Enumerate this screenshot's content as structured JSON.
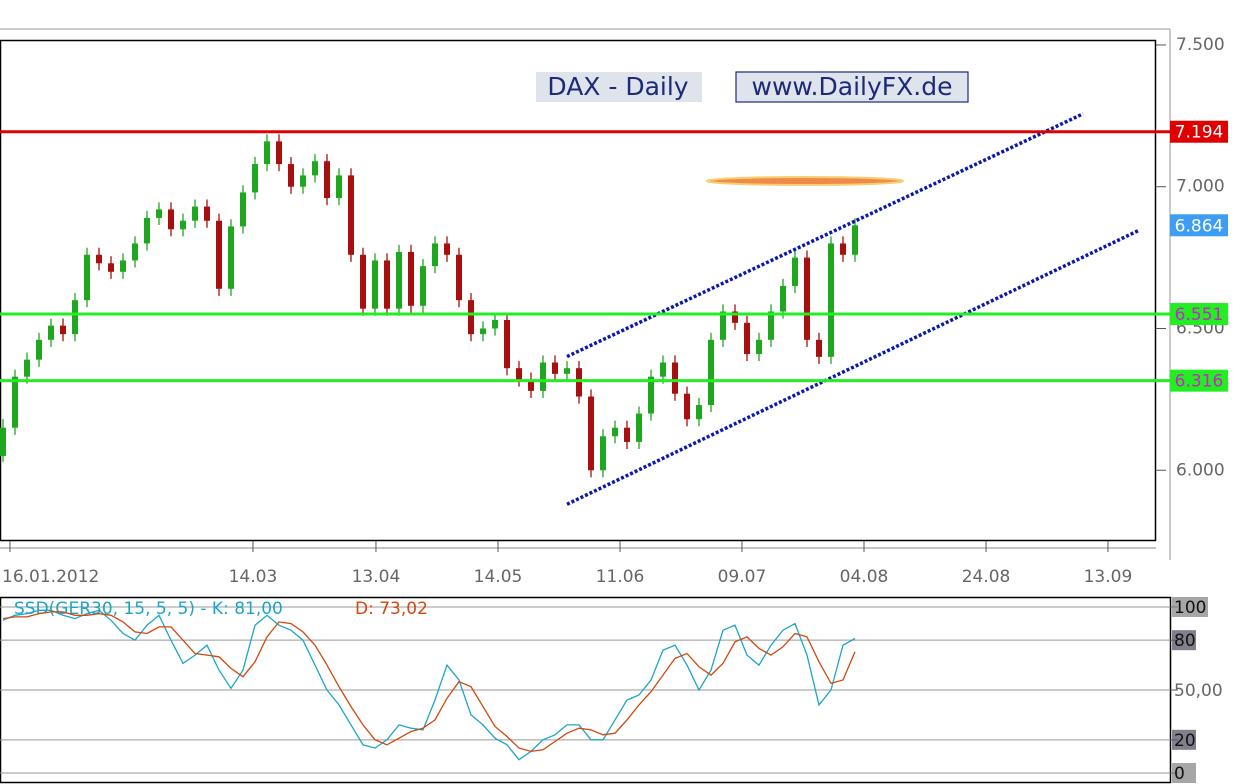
{
  "chart_data": [
    {
      "type": "candlestick",
      "title": "DAX  - Daily",
      "subtitle": "www.DailyFX.de",
      "up_color": "#1fa81f",
      "down_color": "#a80f0f",
      "ohlc": [
        [
          6050,
          6180,
          6030,
          6150
        ],
        [
          6150,
          6355,
          6125,
          6330
        ],
        [
          6330,
          6415,
          6305,
          6390
        ],
        [
          6390,
          6485,
          6365,
          6460
        ],
        [
          6460,
          6535,
          6435,
          6510
        ],
        [
          6510,
          6535,
          6455,
          6480
        ],
        [
          6480,
          6625,
          6455,
          6600
        ],
        [
          6600,
          6785,
          6575,
          6760
        ],
        [
          6760,
          6785,
          6705,
          6730
        ],
        [
          6730,
          6755,
          6675,
          6700
        ],
        [
          6700,
          6765,
          6675,
          6740
        ],
        [
          6740,
          6825,
          6715,
          6800
        ],
        [
          6800,
          6915,
          6775,
          6890
        ],
        [
          6890,
          6945,
          6865,
          6920
        ],
        [
          6920,
          6945,
          6825,
          6850
        ],
        [
          6850,
          6905,
          6825,
          6880
        ],
        [
          6880,
          6955,
          6855,
          6930
        ],
        [
          6930,
          6955,
          6855,
          6880
        ],
        [
          6880,
          6905,
          6615,
          6640
        ],
        [
          6640,
          6885,
          6615,
          6860
        ],
        [
          6860,
          7005,
          6835,
          6980
        ],
        [
          6980,
          7105,
          6955,
          7080
        ],
        [
          7080,
          7185,
          7055,
          7160
        ],
        [
          7160,
          7185,
          7055,
          7080
        ],
        [
          7080,
          7105,
          6975,
          7000
        ],
        [
          7000,
          7065,
          6975,
          7040
        ],
        [
          7040,
          7115,
          7015,
          7090
        ],
        [
          7090,
          7115,
          6935,
          6960
        ],
        [
          6960,
          7065,
          6935,
          7040
        ],
        [
          7040,
          7065,
          6735,
          6760
        ],
        [
          6760,
          6785,
          6545,
          6570
        ],
        [
          6570,
          6765,
          6545,
          6740
        ],
        [
          6740,
          6765,
          6545,
          6570
        ],
        [
          6570,
          6795,
          6545,
          6770
        ],
        [
          6770,
          6795,
          6555,
          6580
        ],
        [
          6580,
          6745,
          6555,
          6720
        ],
        [
          6720,
          6825,
          6695,
          6800
        ],
        [
          6800,
          6825,
          6735,
          6760
        ],
        [
          6760,
          6785,
          6575,
          6600
        ],
        [
          6600,
          6625,
          6455,
          6480
        ],
        [
          6480,
          6525,
          6455,
          6500
        ],
        [
          6500,
          6555,
          6475,
          6530
        ],
        [
          6530,
          6555,
          6335,
          6360
        ],
        [
          6360,
          6385,
          6295,
          6320
        ],
        [
          6320,
          6345,
          6255,
          6280
        ],
        [
          6280,
          6405,
          6255,
          6380
        ],
        [
          6380,
          6405,
          6315,
          6340
        ],
        [
          6340,
          6385,
          6315,
          6360
        ],
        [
          6360,
          6385,
          6235,
          6260
        ],
        [
          6260,
          6285,
          5975,
          6000
        ],
        [
          6000,
          6145,
          5975,
          6120
        ],
        [
          6120,
          6175,
          6095,
          6150
        ],
        [
          6150,
          6175,
          6075,
          6100
        ],
        [
          6100,
          6225,
          6075,
          6200
        ],
        [
          6200,
          6355,
          6175,
          6330
        ],
        [
          6330,
          6405,
          6305,
          6380
        ],
        [
          6380,
          6405,
          6245,
          6270
        ],
        [
          6270,
          6295,
          6155,
          6180
        ],
        [
          6180,
          6255,
          6155,
          6230
        ],
        [
          6230,
          6485,
          6205,
          6460
        ],
        [
          6460,
          6585,
          6435,
          6560
        ],
        [
          6560,
          6585,
          6495,
          6520
        ],
        [
          6520,
          6545,
          6385,
          6410
        ],
        [
          6410,
          6485,
          6385,
          6460
        ],
        [
          6460,
          6585,
          6435,
          6560
        ],
        [
          6560,
          6675,
          6535,
          6650
        ],
        [
          6650,
          6775,
          6625,
          6750
        ],
        [
          6750,
          6775,
          6435,
          6460
        ],
        [
          6460,
          6485,
          6375,
          6400
        ],
        [
          6400,
          6825,
          6375,
          6800
        ],
        [
          6800,
          6825,
          6735,
          6760
        ],
        [
          6760,
          6889,
          6735,
          6864
        ]
      ],
      "ylim": [
        5754,
        7514
      ],
      "yticks": [
        {
          "value": 7500,
          "label": "7.500"
        },
        {
          "value": 7000,
          "label": "7.000"
        },
        {
          "value": 6500,
          "label": "6.500"
        },
        {
          "value": 6000,
          "label": "6.000"
        }
      ],
      "xlim": [
        -0.25,
        96
      ],
      "xticks": [
        {
          "value": 0.58,
          "label": "16.01.2012"
        },
        {
          "value": 20.83,
          "label": "14.03"
        },
        {
          "value": 31.08,
          "label": "13.04"
        },
        {
          "value": 41.25,
          "label": "14.05"
        },
        {
          "value": 51.42,
          "label": "11.06"
        },
        {
          "value": 61.58,
          "label": "09.07"
        },
        {
          "value": 71.75,
          "label": "04.08"
        },
        {
          "value": 81.92,
          "label": "24.08"
        },
        {
          "value": 92.08,
          "label": "13.09"
        }
      ],
      "levels": [
        {
          "value": 7194,
          "label": "7.194",
          "color": "#e00000"
        },
        {
          "value": 6551,
          "label": "6.551",
          "color": "#22ee22"
        },
        {
          "value": 6316,
          "label": "6.316",
          "color": "#22ee22"
        }
      ],
      "last_price": {
        "value": 6864,
        "label": "6.864",
        "color": "#3d9df5"
      },
      "trendlines": [
        {
          "color": "#0a18b0",
          "x": [
            47,
            90
          ],
          "y": [
            6401,
            7257
          ]
        },
        {
          "color": "#0a18b0",
          "x": [
            47,
            94.6
          ],
          "y": [
            5880,
            6845
          ]
        }
      ]
    },
    {
      "type": "line",
      "series": [
        {
          "name": "SSD(GER30, 15, 5, 5) -  K: 81,00",
          "color": "#1ba6c8",
          "values": [
            92,
            95,
            96,
            98,
            98,
            95,
            93,
            96,
            98,
            92,
            84,
            80,
            89,
            95,
            80,
            66,
            71,
            77,
            62,
            51,
            62,
            89,
            95,
            89,
            86,
            80,
            65,
            50,
            41,
            29,
            17,
            15,
            20,
            29,
            27,
            26,
            44,
            65,
            56,
            35,
            29,
            21,
            17,
            8,
            13,
            20,
            23,
            29,
            29,
            20,
            20,
            32,
            44,
            47,
            56,
            74,
            77,
            65,
            50,
            62,
            86,
            89,
            71,
            65,
            77,
            86,
            90,
            71,
            41,
            50,
            77,
            81
          ]
        },
        {
          "name": "D: 73,02",
          "color": "#d2470e",
          "values": [
            93,
            94,
            94,
            96,
            97,
            97,
            95,
            95,
            96,
            95,
            91,
            85,
            84,
            88,
            88,
            80,
            72,
            71,
            70,
            63,
            58,
            67,
            82,
            91,
            90,
            85,
            77,
            65,
            52,
            40,
            29,
            20,
            17,
            21,
            25,
            27,
            32,
            45,
            55,
            52,
            40,
            28,
            22,
            15,
            13,
            14,
            19,
            24,
            27,
            26,
            23,
            24,
            32,
            41,
            49,
            59,
            69,
            72,
            64,
            59,
            66,
            79,
            82,
            75,
            71,
            76,
            84,
            82,
            67,
            54,
            56,
            73.02
          ]
        }
      ],
      "ylim": [
        -5.4,
        105.4
      ],
      "yticks": [
        100,
        80,
        {
          "value": 50,
          "label": "50,00"
        },
        20,
        0
      ]
    }
  ]
}
